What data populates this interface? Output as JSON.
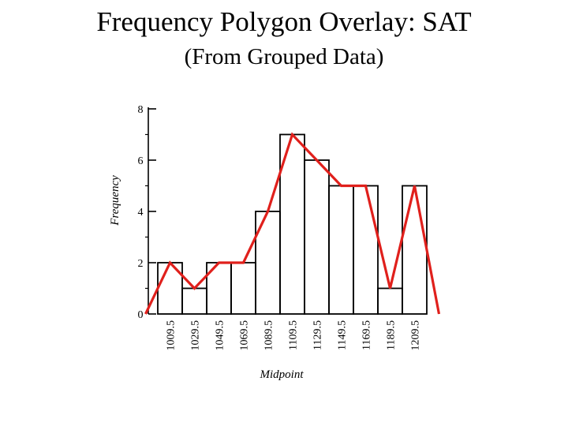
{
  "title": "Frequency Polygon Overlay: SAT",
  "subtitle": "(From Grouped Data)",
  "chart_data": {
    "type": "bar",
    "overlay": "line",
    "xlabel": "Midpoint",
    "ylabel": "Frequency",
    "ylim": [
      0,
      8
    ],
    "yticks": [
      "0",
      "2",
      "4",
      "6",
      "8"
    ],
    "categories": [
      "1009.5",
      "1029.5",
      "1049.5",
      "1069.5",
      "1089.5",
      "1109.5",
      "1129.5",
      "1149.5",
      "1169.5",
      "1189.5",
      "1209.5"
    ],
    "values": [
      2,
      1,
      2,
      2,
      4,
      7,
      6,
      5,
      5,
      1,
      5
    ],
    "polygon": {
      "x": [
        "989.5",
        "1009.5",
        "1029.5",
        "1049.5",
        "1069.5",
        "1089.5",
        "1109.5",
        "1129.5",
        "1149.5",
        "1169.5",
        "1189.5",
        "1209.5",
        "1229.5"
      ],
      "y": [
        0,
        2,
        1,
        2,
        2,
        4,
        7,
        6,
        5,
        5,
        1,
        5,
        0
      ]
    },
    "bar_color": "#000000",
    "polygon_color": "#e0201c"
  }
}
